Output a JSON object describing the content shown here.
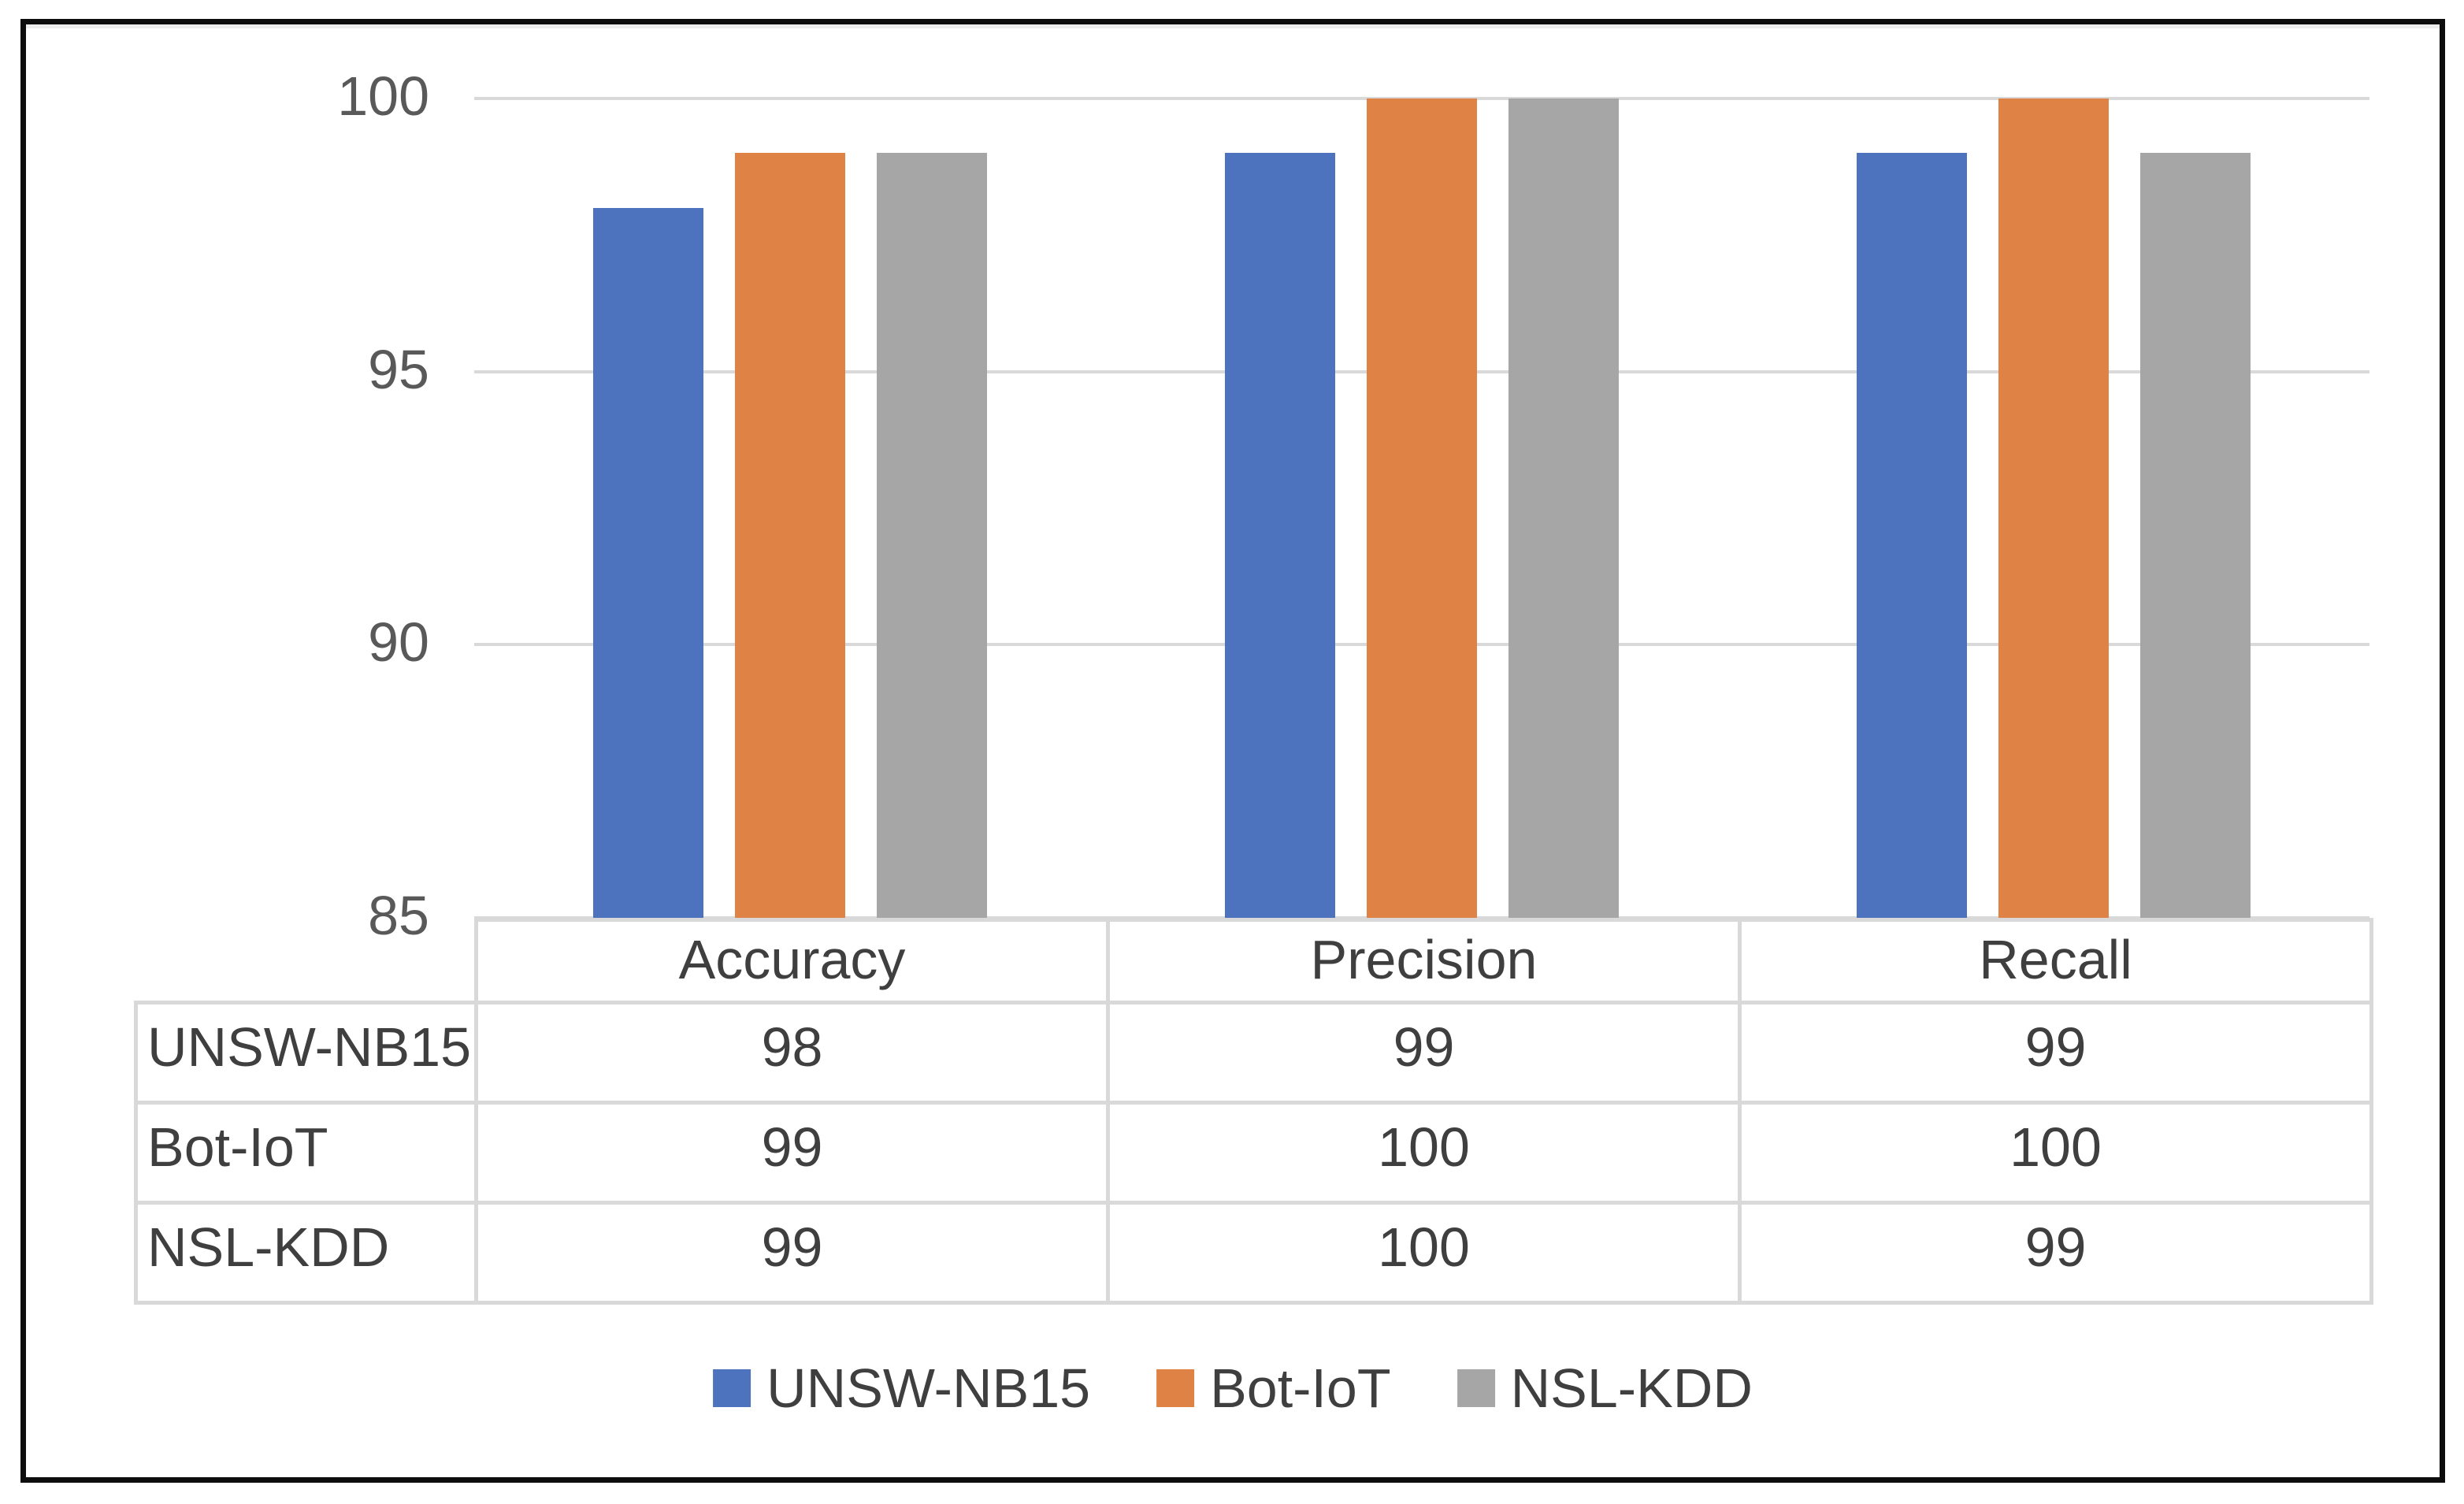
{
  "figure": {
    "background": "#ffffff",
    "border_color": "#0d0d0d"
  },
  "chart_data": {
    "type": "bar",
    "title": "",
    "xlabel": "",
    "ylabel": "",
    "categories": [
      "Accuracy",
      "Precision",
      "Recall"
    ],
    "series": [
      {
        "name": "UNSW-NB15",
        "color": "#4E73BE",
        "values": [
          98,
          99,
          99
        ]
      },
      {
        "name": "Bot-IoT",
        "color": "#DE8245",
        "values": [
          99,
          100,
          100
        ]
      },
      {
        "name": "NSL-KDD",
        "color": "#A6A6A6",
        "values": [
          99,
          100,
          99
        ]
      }
    ],
    "ylim": [
      85,
      100
    ],
    "yticks": [
      85,
      90,
      95,
      100
    ],
    "grid": true,
    "gridline_color": "#d9d9d9",
    "axis_label_color": "#595959",
    "table_text_color": "#3f3f3f",
    "legend_position": "bottom",
    "legend_entries": [
      "UNSW-NB15",
      "Bot-IoT",
      "NSL-KDD"
    ],
    "data_table": {
      "column_headers": [
        "Accuracy",
        "Precision",
        "Recall"
      ],
      "rows": [
        {
          "label": "UNSW-NB15",
          "values": [
            "98",
            "99",
            "99"
          ]
        },
        {
          "label": "Bot-IoT",
          "values": [
            "99",
            "100",
            "100"
          ]
        },
        {
          "label": "NSL-KDD",
          "values": [
            "99",
            "100",
            "99"
          ]
        }
      ]
    }
  }
}
